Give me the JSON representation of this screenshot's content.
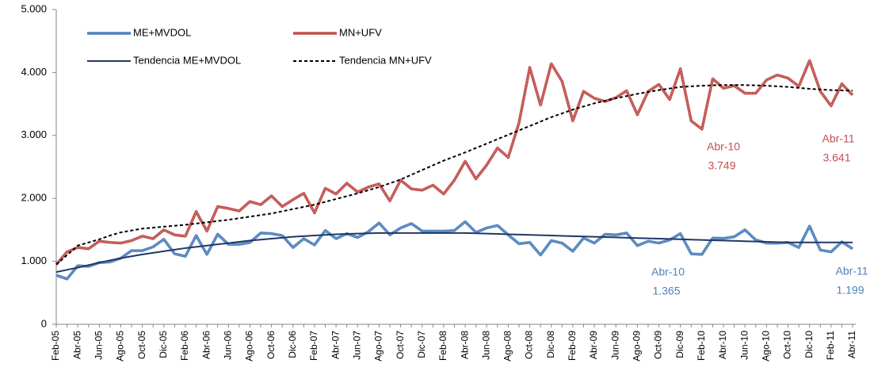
{
  "chart_data": {
    "type": "line",
    "categories": [
      "Feb-05",
      null,
      "Abr-05",
      null,
      "Jun-05",
      null,
      "Ago-05",
      null,
      "Oct-05",
      null,
      "Dic-05",
      null,
      "Feb-06",
      null,
      "Abr-06",
      null,
      "Jun-06",
      null,
      "Ago-06",
      null,
      "Oct-06",
      null,
      "Dic-06",
      null,
      "Feb-07",
      null,
      "Abr-07",
      null,
      "Jun-07",
      null,
      "Ago-07",
      null,
      "Oct-07",
      null,
      "Dic-07",
      null,
      "Feb-08",
      null,
      "Abr-08",
      null,
      "Jun-08",
      null,
      "Ago-08",
      null,
      "Oct-08",
      null,
      "Dic-08",
      null,
      "Feb-09",
      null,
      "Abr-09",
      null,
      "Jun-09",
      null,
      "Ago-09",
      null,
      "Oct-09",
      null,
      "Dic-09",
      null,
      "Feb-10",
      null,
      "Abr-10",
      null,
      "Jun-10",
      null,
      "Ago-10",
      null,
      "Oct-10",
      null,
      "Dic-10",
      null,
      "Feb-11",
      null,
      "Abr-11"
    ],
    "series": [
      {
        "name": "ME+MVDOL",
        "color": "#4f81bd",
        "style": "solid",
        "values": [
          780,
          720,
          930,
          920,
          980,
          990,
          1050,
          1170,
          1170,
          1230,
          1350,
          1120,
          1080,
          1410,
          1110,
          1430,
          1270,
          1270,
          1300,
          1450,
          1440,
          1410,
          1220,
          1360,
          1260,
          1490,
          1360,
          1440,
          1380,
          1470,
          1610,
          1420,
          1530,
          1600,
          1480,
          1480,
          1480,
          1490,
          1630,
          1460,
          1530,
          1570,
          1420,
          1280,
          1300,
          1100,
          1330,
          1290,
          1160,
          1370,
          1290,
          1430,
          1420,
          1450,
          1250,
          1320,
          1290,
          1340,
          1440,
          1120,
          1110,
          1370,
          1365,
          1390,
          1500,
          1340,
          1290,
          1290,
          1300,
          1220,
          1560,
          1180,
          1150,
          1310,
          1199
        ],
        "value_labels": [
          null,
          null,
          null,
          null,
          null,
          null,
          null,
          null,
          null,
          null,
          null,
          null,
          null,
          null,
          null,
          null,
          null,
          null,
          null,
          null,
          null,
          null,
          null,
          null,
          null,
          null,
          null,
          null,
          null,
          null,
          null,
          null,
          null,
          null,
          null,
          null,
          null,
          null,
          null,
          null,
          null,
          null,
          null,
          null,
          null,
          null,
          null,
          null,
          null,
          null,
          null,
          null,
          null,
          null,
          null,
          null,
          null,
          null,
          null,
          null,
          null,
          null,
          "1.365",
          null,
          null,
          null,
          null,
          null,
          null,
          null,
          null,
          null,
          null,
          null,
          "1.199"
        ]
      },
      {
        "name": "MN+UFV",
        "color": "#c0504d",
        "style": "solid",
        "values": [
          950,
          1150,
          1220,
          1200,
          1320,
          1300,
          1290,
          1330,
          1400,
          1360,
          1500,
          1420,
          1400,
          1790,
          1480,
          1870,
          1840,
          1800,
          1950,
          1900,
          2040,
          1870,
          1980,
          2080,
          1770,
          2160,
          2070,
          2240,
          2100,
          2180,
          2230,
          1960,
          2290,
          2150,
          2130,
          2210,
          2070,
          2290,
          2590,
          2310,
          2530,
          2800,
          2650,
          3200,
          4080,
          3480,
          4140,
          3860,
          3230,
          3700,
          3590,
          3540,
          3600,
          3710,
          3330,
          3700,
          3810,
          3570,
          4060,
          3230,
          3100,
          3900,
          3749,
          3790,
          3670,
          3670,
          3880,
          3960,
          3910,
          3780,
          4190,
          3700,
          3470,
          3820,
          3641
        ],
        "value_labels": [
          null,
          null,
          null,
          null,
          null,
          null,
          null,
          null,
          null,
          null,
          null,
          null,
          null,
          null,
          null,
          null,
          null,
          null,
          null,
          null,
          null,
          null,
          null,
          null,
          null,
          null,
          null,
          null,
          null,
          null,
          null,
          null,
          null,
          null,
          null,
          null,
          null,
          null,
          null,
          null,
          null,
          null,
          null,
          null,
          null,
          null,
          null,
          null,
          null,
          null,
          null,
          null,
          null,
          null,
          null,
          null,
          null,
          null,
          null,
          null,
          null,
          null,
          "3.749",
          null,
          null,
          null,
          null,
          null,
          null,
          null,
          null,
          null,
          null,
          null,
          "3.641"
        ]
      },
      {
        "name": "Tendencia ME+MVDOL",
        "color": "#1f3864",
        "style": "solid",
        "values": [
          830,
          865,
          900,
          940,
          980,
          1015,
          1050,
          1080,
          1110,
          1135,
          1160,
          1185,
          1210,
          1230,
          1250,
          1270,
          1290,
          1310,
          1330,
          1345,
          1360,
          1375,
          1390,
          1400,
          1410,
          1420,
          1430,
          1435,
          1440,
          1445,
          1450,
          1450,
          1450,
          1450,
          1450,
          1450,
          1450,
          1450,
          1450,
          1445,
          1440,
          1435,
          1430,
          1425,
          1420,
          1415,
          1410,
          1405,
          1400,
          1395,
          1390,
          1385,
          1380,
          1375,
          1370,
          1365,
          1360,
          1355,
          1350,
          1345,
          1340,
          1335,
          1330,
          1325,
          1320,
          1315,
          1310,
          1305,
          1300,
          1300,
          1300,
          1300,
          1300,
          1300,
          1300
        ]
      },
      {
        "name": "Tendencia MN+UFV",
        "color": "#000000",
        "style": "dashed",
        "values": [
          950,
          1100,
          1250,
          1300,
          1350,
          1410,
          1460,
          1490,
          1520,
          1535,
          1550,
          1565,
          1580,
          1600,
          1620,
          1640,
          1660,
          1685,
          1710,
          1735,
          1760,
          1795,
          1830,
          1865,
          1900,
          1945,
          1990,
          2035,
          2080,
          2130,
          2180,
          2240,
          2300,
          2375,
          2450,
          2525,
          2600,
          2665,
          2730,
          2800,
          2870,
          2940,
          3010,
          3080,
          3150,
          3220,
          3290,
          3350,
          3410,
          3460,
          3510,
          3550,
          3590,
          3625,
          3660,
          3690,
          3720,
          3745,
          3770,
          3780,
          3790,
          3795,
          3800,
          3800,
          3800,
          3795,
          3790,
          3780,
          3770,
          3755,
          3740,
          3730,
          3720,
          3715,
          3710
        ]
      }
    ],
    "ylim": [
      0,
      5000
    ],
    "yticks": [
      0,
      {
        "value": 1000,
        "label": "1.000"
      },
      {
        "value": 2000,
        "label": "2.000"
      },
      {
        "value": 3000,
        "label": "3.000"
      },
      {
        "value": 4000,
        "label": "4.000"
      },
      {
        "value": 5000,
        "label": "5.000"
      }
    ],
    "grid": false,
    "legend": "top-left"
  }
}
